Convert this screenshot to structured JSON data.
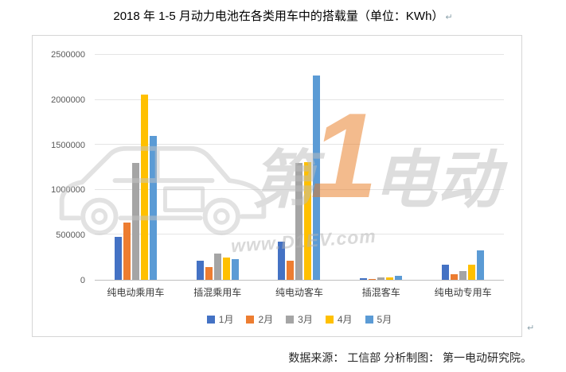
{
  "page": {
    "title": "2018 年 1-5 月动力电池在各类用车中的搭载量（单位：KWh）",
    "title_mark": "↵",
    "chart_mark": "↵",
    "footer": "数据来源： 工信部 分析制图： 第一电动研究院。"
  },
  "watermark": {
    "part1": "第",
    "part2": "1",
    "part3": "电动",
    "url": "www.D1EV.com"
  },
  "chart_data": {
    "type": "bar",
    "title": "2018 年 1-5 月动力电池在各类用车中的搭载量（单位：KWh）",
    "xlabel": "",
    "ylabel": "",
    "unit": "KWh",
    "categories": [
      "纯电动乘用车",
      "插混乘用车",
      "纯电动客车",
      "插混客车",
      "纯电动专用车"
    ],
    "series": [
      {
        "name": "1月",
        "color": "#4472C4",
        "values": [
          480000,
          215000,
          420000,
          20000,
          170000
        ]
      },
      {
        "name": "2月",
        "color": "#ED7D31",
        "values": [
          640000,
          145000,
          215000,
          12000,
          60000
        ]
      },
      {
        "name": "3月",
        "color": "#A5A5A5",
        "values": [
          1300000,
          290000,
          1300000,
          27000,
          100000
        ]
      },
      {
        "name": "4月",
        "color": "#FFC000",
        "values": [
          2060000,
          250000,
          1310000,
          27000,
          170000
        ]
      },
      {
        "name": "5月",
        "color": "#5B9BD5",
        "values": [
          1600000,
          230000,
          2270000,
          48000,
          330000
        ]
      }
    ],
    "ylim": [
      0,
      2500000
    ],
    "yticks": [
      0,
      500000,
      1000000,
      1500000,
      2000000,
      2500000
    ],
    "grid": true,
    "legend_position": "bottom"
  }
}
